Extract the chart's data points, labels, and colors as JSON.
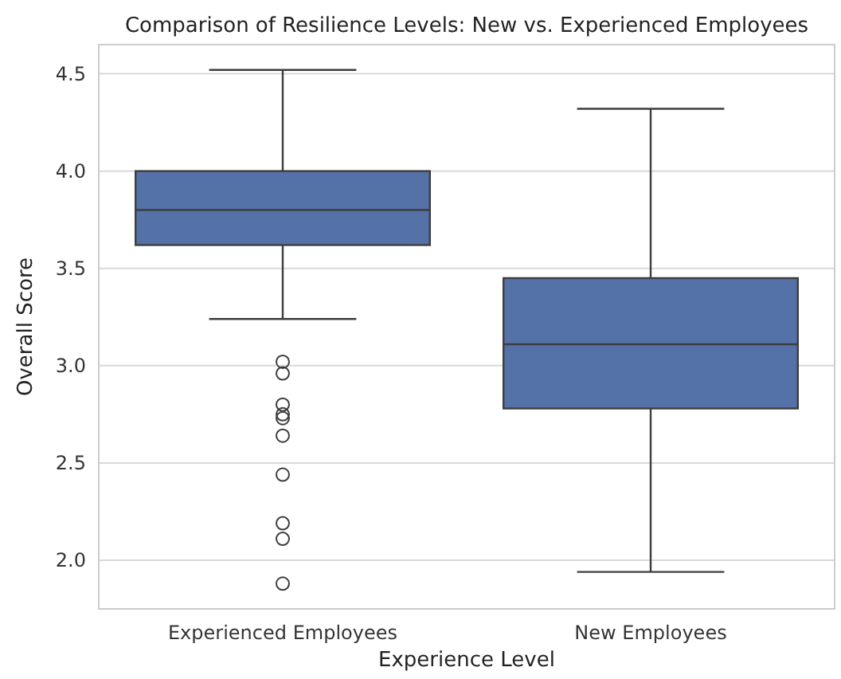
{
  "chart_data": {
    "type": "box",
    "title": "Comparison of Resilience Levels: New vs. Experienced Employees",
    "xlabel": "Experience Level",
    "ylabel": "Overall Score",
    "categories": [
      "Experienced Employees",
      "New Employees"
    ],
    "color": "#5471a8",
    "ylim": [
      1.75,
      4.65
    ],
    "yticks": [
      {
        "value": 2,
        "label": "2.0"
      },
      2.5,
      {
        "value": 3,
        "label": "3.0"
      },
      3.5,
      {
        "value": 4,
        "label": "4.0"
      },
      4.5
    ],
    "grid": "y",
    "boxes": [
      {
        "low": 3.24,
        "q1": 3.62,
        "median": 3.8,
        "q3": 4.0,
        "high": 4.52,
        "outliers": [
          3.02,
          2.96,
          2.8,
          2.75,
          2.73,
          2.64,
          2.44,
          2.19,
          2.11,
          1.88
        ]
      },
      {
        "low": 1.94,
        "q1": 2.78,
        "median": 3.11,
        "q3": 3.45,
        "high": 4.32
      }
    ]
  }
}
